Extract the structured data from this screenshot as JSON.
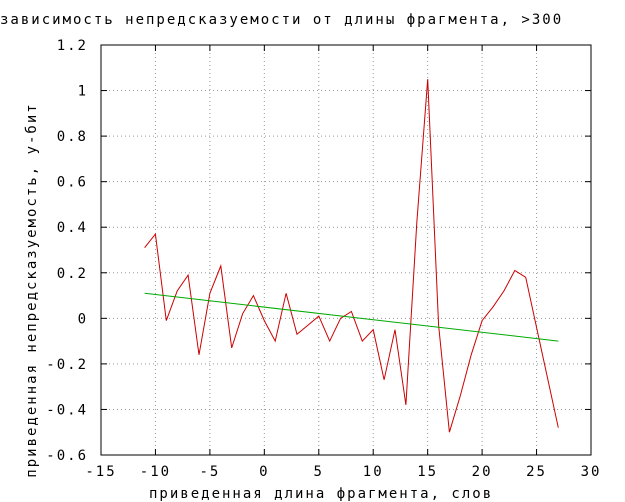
{
  "chart_data": {
    "type": "line",
    "title": "зависимость непредсказуемости от длины фрагмента, >300",
    "xlabel": "приведенная длина фрагмента, слов",
    "ylabel": "приведенная непредсказуемость, у-бит",
    "xlim": [
      -15,
      30
    ],
    "ylim": [
      -0.6,
      1.2
    ],
    "xticks": [
      "-15",
      "-10",
      "-5",
      "0",
      "5",
      "10",
      "15",
      "20",
      "25",
      "30"
    ],
    "yticks": [
      "-0.6",
      "-0.4",
      "-0.2",
      "0",
      "0.2",
      "0.4",
      "0.6",
      "0.8",
      "1",
      "1.2"
    ],
    "grid": true,
    "legend": "none",
    "series": [
      {
        "color": "#cc0000",
        "x": [
          -11,
          -10,
          -9,
          -8,
          -7,
          -6,
          -5,
          -4,
          -3,
          -2,
          -1,
          0,
          1,
          2,
          3,
          4,
          5,
          6,
          7,
          8,
          9,
          10,
          11,
          12,
          13,
          14,
          15,
          16,
          17,
          18,
          19,
          20,
          21,
          22,
          23,
          24,
          27
        ],
        "y": [
          0.31,
          0.37,
          -0.01,
          0.12,
          0.19,
          -0.16,
          0.11,
          0.23,
          -0.13,
          0.02,
          0.1,
          -0.01,
          -0.1,
          0.11,
          -0.07,
          -0.03,
          0.01,
          -0.1,
          0.0,
          0.03,
          -0.1,
          -0.05,
          -0.27,
          -0.05,
          -0.38,
          0.42,
          1.05,
          -0.03,
          -0.5,
          -0.34,
          -0.16,
          -0.01,
          0.05,
          0.12,
          0.21,
          0.18,
          -0.48
        ]
      },
      {
        "color": "#00aa00",
        "x": [
          -11,
          27
        ],
        "y": [
          0.11,
          -0.1
        ]
      }
    ]
  }
}
